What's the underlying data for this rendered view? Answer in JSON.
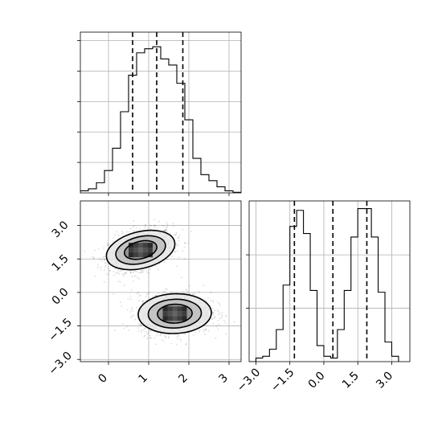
{
  "chart_data": [
    {
      "type": "bar",
      "subtype": "step-histogram",
      "panel": "top-left marginal of x",
      "x_range": [
        -0.7,
        3.3
      ],
      "bin_edges": [
        -0.7,
        -0.5,
        -0.3,
        -0.1,
        0.1,
        0.3,
        0.5,
        0.7,
        0.9,
        1.1,
        1.3,
        1.5,
        1.7,
        1.9,
        2.1,
        2.3,
        2.5,
        2.7,
        2.9,
        3.1,
        3.3
      ],
      "counts": [
        1,
        2,
        5,
        11,
        22,
        40,
        58,
        69,
        71,
        72,
        66,
        63,
        54,
        36,
        17,
        9,
        6,
        3,
        1,
        0.3
      ],
      "quantile_lines": [
        0.6,
        1.2,
        1.85
      ],
      "grid": true,
      "tick_labels_shown": false
    },
    {
      "type": "heatmap",
      "subtype": "2d-density-contour",
      "panel": "bottom-left joint",
      "x_range": [
        -0.7,
        3.3
      ],
      "y_range": [
        -3.1,
        4.1
      ],
      "x_ticks": [
        "0",
        "1",
        "2",
        "3"
      ],
      "y_ticks": [
        "−3.0",
        "−1.5",
        "0.0",
        "1.5",
        "3.0"
      ],
      "clusters": [
        {
          "center": [
            0.8,
            1.9
          ],
          "sigma": [
            0.4,
            0.45
          ],
          "rho": 0.35
        },
        {
          "center": [
            1.65,
            -0.95
          ],
          "sigma": [
            0.45,
            0.45
          ],
          "rho": 0.05
        }
      ],
      "contour_levels": 3,
      "scatter_color": "#000000",
      "grid": true
    },
    {
      "type": "bar",
      "subtype": "step-histogram",
      "panel": "bottom-right marginal of y",
      "x_range": [
        -3.3,
        3.8
      ],
      "bin_edges": [
        -3.3,
        -3.0,
        -2.7,
        -2.4,
        -2.1,
        -1.8,
        -1.5,
        -1.2,
        -0.9,
        -0.6,
        -0.3,
        0.0,
        0.3,
        0.6,
        0.9,
        1.2,
        1.5,
        1.8,
        2.1,
        2.4,
        2.7,
        3.0,
        3.3
      ],
      "counts": [
        0,
        2,
        3,
        7,
        18,
        43,
        76,
        85,
        72,
        40,
        9,
        3,
        2,
        18,
        40,
        70,
        86,
        86,
        70,
        39,
        11,
        3
      ],
      "quantile_lines": [
        -1.3,
        0.4,
        1.9
      ],
      "x_ticks": [
        "−3.0",
        "−1.5",
        "0.0",
        "1.5",
        "3.0"
      ],
      "grid": true
    }
  ]
}
